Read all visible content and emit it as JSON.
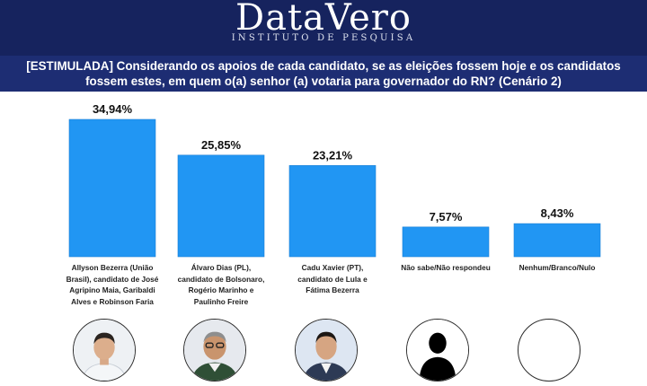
{
  "header": {
    "logo_text": "DataVero",
    "logo_subtitle": "INSTITUTO DE PESQUISA"
  },
  "question": {
    "line1": "[ESTIMULADA] Considerando os apoios de cada candidato, se as eleições fossem hoje e os candidatos",
    "line2": "fossem estes, em quem o(a) senhor (a) votaria para governador do RN? (Cenário 2)"
  },
  "chart_data": {
    "type": "bar",
    "title": "",
    "xlabel": "",
    "ylabel": "",
    "ylim": [
      0,
      40
    ],
    "grid": false,
    "bar_color": "#2196f3",
    "categories": [
      "Allyson Bezerra (União Brasil), candidato de José Agripino Maia, Garibaldi Alves e Robinson Faria",
      "Álvaro Dias (PL), candidato de Bolsonaro, Rogério Marinho e Paulinho Freire",
      "Cadu Xavier (PT), candidato de Lula e Fátima Bezerra",
      "Não sabe/Não respondeu",
      "Nenhum/Branco/Nulo"
    ],
    "values": [
      34.94,
      25.85,
      23.21,
      7.57,
      8.43
    ],
    "value_labels": [
      "34,94%",
      "25,85%",
      "23,21%",
      "7,57%",
      "8,43%"
    ]
  },
  "category_lines": [
    [
      "Allyson Bezerra (União",
      "Brasil), candidato de José",
      "Agripino Maia, Garibaldi",
      "Alves e Robinson Faria"
    ],
    [
      "Álvaro Dias (PL),",
      "candidato de Bolsonaro,",
      "Rogério Marinho e",
      "Paulinho Freire"
    ],
    [
      "Cadu Xavier (PT),",
      "candidato de Lula e",
      "Fátima Bezerra"
    ],
    [
      "Não sabe/Não respondeu"
    ],
    [
      "Nenhum/Branco/Nulo"
    ]
  ],
  "avatars": [
    "person-photo",
    "person-photo",
    "person-photo",
    "silhouette-icon",
    "empty-circle"
  ]
}
